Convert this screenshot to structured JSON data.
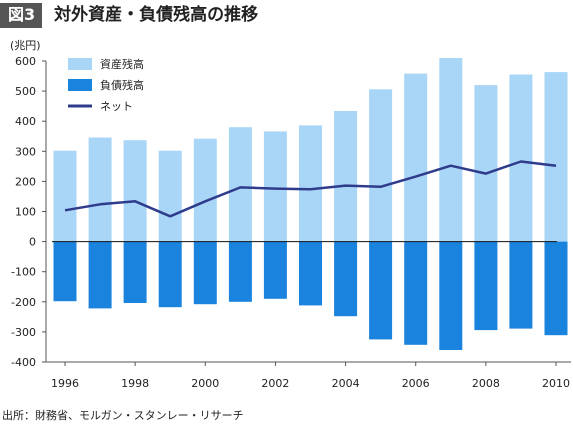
{
  "figure": {
    "badge": "図3",
    "title": "対外資産・負債残高の推移",
    "unit": "(兆円)",
    "source": "出所：財務省、モルガン・スタンレー・リサーチ"
  },
  "colors": {
    "assets": "#a9d5f7",
    "liabilities": "#1a83dd",
    "net": "#2f3c8c",
    "badge_bg": "#555555"
  },
  "chart_data": {
    "type": "bar",
    "title": "対外資産・負債残高の推移",
    "ylabel": "(兆円)",
    "xlabel": "",
    "categories": [
      1996,
      1997,
      1998,
      1999,
      2000,
      2001,
      2002,
      2003,
      2004,
      2005,
      2006,
      2007,
      2008,
      2009,
      2010
    ],
    "ylim": [
      -400,
      600
    ],
    "yticks": [
      600,
      500,
      400,
      300,
      200,
      100,
      0,
      -100,
      -200,
      -300,
      -400
    ],
    "xticks": [
      1996,
      1998,
      2000,
      2002,
      2004,
      2006,
      2008,
      2010
    ],
    "grid": false,
    "legend_position": "top-left",
    "series": [
      {
        "name": "資産残高",
        "type": "bar",
        "values": [
          302,
          346,
          337,
          302,
          342,
          380,
          366,
          386,
          434,
          506,
          558,
          610,
          520,
          555,
          563
        ]
      },
      {
        "name": "負債残高",
        "type": "bar",
        "values": [
          -198,
          -222,
          -204,
          -218,
          -208,
          -200,
          -190,
          -212,
          -248,
          -325,
          -343,
          -360,
          -294,
          -289,
          -311
        ]
      },
      {
        "name": "ネット",
        "type": "line",
        "values": [
          104,
          124,
          134,
          84,
          134,
          180,
          176,
          174,
          186,
          182,
          216,
          252,
          226,
          266,
          252
        ]
      }
    ]
  }
}
